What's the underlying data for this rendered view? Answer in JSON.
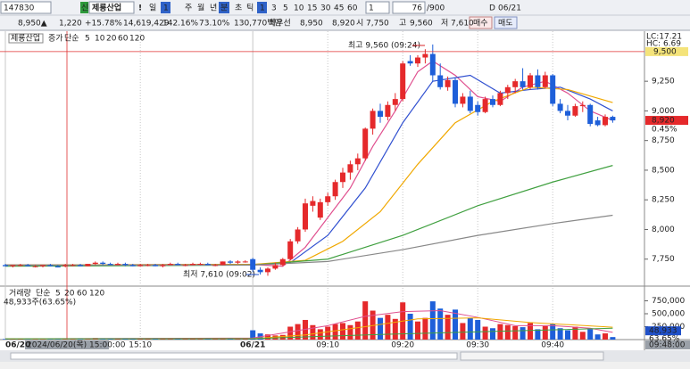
{
  "toolbar": {
    "code": "147830",
    "badge": "신",
    "name": "제룡산업",
    "alert": "!",
    "period": "일",
    "count": "1",
    "periods": [
      "주",
      "월",
      "년",
      "분",
      "초",
      "틱"
    ],
    "intervals": [
      "1",
      "3",
      "5",
      "10",
      "15",
      "30",
      "45",
      "60"
    ],
    "spin": "1",
    "position": "76",
    "total": "/900",
    "date_flag": "D",
    "date": "06/21"
  },
  "quote": {
    "price": "8,950▲",
    "change": "1,220",
    "rate": "+15.78%",
    "volume": "14,619,429",
    "volume_ratio": "142.16%",
    "turnover": "73.10%",
    "amount": "130,770백만",
    "best": "최우선",
    "ask": "8,950",
    "bid": "8,920",
    "open_label": "시",
    "open": "7,750",
    "high_label": "고",
    "high": "9,560",
    "low_label": "저",
    "low": "7,610",
    "buy": "매수",
    "sell": "매도"
  },
  "chart_data": {
    "type": "candlestick",
    "legend": {
      "name": "제룡산업",
      "kind": "증가",
      "method": "단순",
      "periods": [
        "5",
        "10",
        "20",
        "60",
        "120"
      ]
    },
    "ylim": [
      7530,
      9672
    ],
    "yticks": [
      {
        "value": 7750,
        "label": "7,750"
      },
      {
        "value": 8000,
        "label": "8,000"
      },
      {
        "value": 8250,
        "label": "8,250"
      },
      {
        "value": 8500,
        "label": "8,500"
      },
      {
        "value": 8750,
        "label": "8,750"
      },
      {
        "value": 9000,
        "label": "9,000"
      },
      {
        "value": 9250,
        "label": "9,250"
      }
    ],
    "xticks": [
      {
        "value": 0,
        "label": "06/20"
      },
      {
        "value": 18,
        "label": "15:10"
      },
      {
        "value": 33,
        "label": "06/21"
      },
      {
        "value": 43,
        "label": "09:10"
      },
      {
        "value": 53,
        "label": "09:20"
      },
      {
        "value": 63,
        "label": "09:30"
      },
      {
        "value": 73,
        "label": "09:40"
      }
    ],
    "up_color": "#e5292b",
    "down_color": "#1e5fd9",
    "ohlc": [
      [
        7700,
        7710,
        7690,
        7690
      ],
      [
        7690,
        7700,
        7680,
        7700
      ],
      [
        7700,
        7710,
        7690,
        7700
      ],
      [
        7700,
        7710,
        7690,
        7690
      ],
      [
        7690,
        7700,
        7680,
        7690
      ],
      [
        7690,
        7700,
        7680,
        7700
      ],
      [
        7700,
        7710,
        7690,
        7690
      ],
      [
        7690,
        7700,
        7680,
        7680
      ],
      [
        7690,
        7710,
        7680,
        7700
      ],
      [
        7700,
        7710,
        7690,
        7700
      ],
      [
        7700,
        7710,
        7690,
        7690
      ],
      [
        7690,
        7710,
        7690,
        7710
      ],
      [
        7710,
        7730,
        7700,
        7720
      ],
      [
        7720,
        7730,
        7700,
        7710
      ],
      [
        7710,
        7720,
        7700,
        7700
      ],
      [
        7700,
        7720,
        7700,
        7710
      ],
      [
        7710,
        7720,
        7690,
        7700
      ],
      [
        7700,
        7710,
        7690,
        7690
      ],
      [
        7690,
        7710,
        7690,
        7700
      ],
      [
        7700,
        7710,
        7690,
        7700
      ],
      [
        7700,
        7710,
        7690,
        7690
      ],
      [
        7690,
        7710,
        7680,
        7700
      ],
      [
        7700,
        7720,
        7700,
        7710
      ],
      [
        7710,
        7720,
        7700,
        7700
      ],
      [
        7700,
        7710,
        7690,
        7700
      ],
      [
        7700,
        7720,
        7700,
        7710
      ],
      [
        7710,
        7720,
        7700,
        7710
      ],
      [
        7710,
        7720,
        7700,
        7700
      ],
      [
        7700,
        7710,
        7690,
        7700
      ],
      [
        7700,
        7730,
        7700,
        7730
      ],
      [
        7730,
        7740,
        7710,
        7720
      ],
      [
        7720,
        7740,
        7710,
        7730
      ],
      [
        7730,
        7740,
        7720,
        7730
      ],
      [
        7750,
        7760,
        7640,
        7660
      ],
      [
        7660,
        7680,
        7620,
        7640
      ],
      [
        7640,
        7680,
        7610,
        7670
      ],
      [
        7670,
        7720,
        7660,
        7700
      ],
      [
        7700,
        7760,
        7690,
        7750
      ],
      [
        7750,
        7920,
        7740,
        7900
      ],
      [
        7900,
        8020,
        7880,
        8000
      ],
      [
        8000,
        8260,
        7980,
        8220
      ],
      [
        8200,
        8280,
        8150,
        8240
      ],
      [
        8100,
        8260,
        8080,
        8230
      ],
      [
        8230,
        8310,
        8200,
        8280
      ],
      [
        8280,
        8420,
        8250,
        8400
      ],
      [
        8400,
        8520,
        8350,
        8480
      ],
      [
        8480,
        8580,
        8420,
        8550
      ],
      [
        8550,
        8640,
        8500,
        8600
      ],
      [
        8600,
        8860,
        8580,
        8850
      ],
      [
        8850,
        9020,
        8800,
        9000
      ],
      [
        9000,
        9060,
        8900,
        8950
      ],
      [
        8950,
        9080,
        8920,
        9050
      ],
      [
        9050,
        9150,
        9000,
        9100
      ],
      [
        9100,
        9420,
        9080,
        9400
      ],
      [
        9420,
        9470,
        9380,
        9400
      ],
      [
        9400,
        9470,
        9370,
        9450
      ],
      [
        9450,
        9520,
        9400,
        9480
      ],
      [
        9480,
        9560,
        9250,
        9300
      ],
      [
        9300,
        9400,
        9180,
        9200
      ],
      [
        9200,
        9290,
        9170,
        9260
      ],
      [
        9260,
        9280,
        9030,
        9060
      ],
      [
        9060,
        9150,
        9030,
        9120
      ],
      [
        9120,
        9170,
        8980,
        9000
      ],
      [
        9050,
        9080,
        8960,
        8990
      ],
      [
        8990,
        9120,
        8980,
        9100
      ],
      [
        9100,
        9130,
        9030,
        9050
      ],
      [
        9050,
        9170,
        9040,
        9150
      ],
      [
        9150,
        9220,
        9100,
        9200
      ],
      [
        9200,
        9270,
        9150,
        9250
      ],
      [
        9250,
        9360,
        9180,
        9200
      ],
      [
        9200,
        9320,
        9180,
        9300
      ],
      [
        9300,
        9350,
        9180,
        9200
      ],
      [
        9200,
        9330,
        9190,
        9300
      ],
      [
        9300,
        9310,
        9040,
        9060
      ],
      [
        9060,
        9100,
        8980,
        9000
      ],
      [
        9000,
        9050,
        8920,
        8960
      ],
      [
        8960,
        9060,
        8950,
        9040
      ],
      [
        9040,
        9080,
        8990,
        9050
      ],
      [
        9050,
        9060,
        8870,
        8890
      ],
      [
        8920,
        8950,
        8870,
        8880
      ],
      [
        8880,
        8970,
        8870,
        8950
      ],
      [
        8950,
        8960,
        8900,
        8920
      ]
    ],
    "ma": [
      {
        "name": "5",
        "color": "#e0508f",
        "x": [
          0,
          33,
          37,
          40,
          43,
          46,
          49,
          52,
          55,
          57,
          60,
          63,
          66,
          69,
          72,
          75,
          78,
          81
        ],
        "values": [
          7700,
          7705,
          7690,
          7850,
          8100,
          8350,
          8700,
          9000,
          9330,
          9420,
          9300,
          9120,
          9080,
          9200,
          9250,
          9150,
          9000,
          8920
        ]
      },
      {
        "name": "10",
        "color": "#3050d0",
        "x": [
          0,
          33,
          38,
          43,
          48,
          53,
          57,
          62,
          66,
          70,
          74,
          78,
          81
        ],
        "values": [
          7700,
          7705,
          7720,
          7950,
          8350,
          8900,
          9250,
          9300,
          9150,
          9180,
          9200,
          9100,
          9000
        ]
      },
      {
        "name": "20",
        "color": "#f0a800",
        "x": [
          0,
          33,
          40,
          45,
          50,
          55,
          60,
          65,
          70,
          75,
          81
        ],
        "values": [
          7700,
          7705,
          7740,
          7900,
          8150,
          8550,
          8900,
          9080,
          9200,
          9180,
          9070
        ]
      },
      {
        "name": "60",
        "color": "#40a040",
        "x": [
          0,
          33,
          43,
          53,
          63,
          73,
          81
        ],
        "values": [
          7690,
          7700,
          7750,
          7950,
          8200,
          8400,
          8540
        ]
      },
      {
        "name": "120",
        "color": "#888888",
        "x": [
          0,
          33,
          43,
          53,
          63,
          73,
          81
        ],
        "values": [
          7700,
          7700,
          7730,
          7830,
          7950,
          8050,
          8120
        ]
      }
    ],
    "high_note": "최고 9,560 (09:24)",
    "low_note": "최저 7,610 (09:02)",
    "lc": "LC:17.21",
    "hc": "HC: 6.69",
    "crosshair": {
      "price": {
        "value": 9500,
        "label": "9,500"
      },
      "time": "2024/06/20(목) 15:00:00"
    },
    "current": {
      "value": 8920,
      "label": "8,920"
    },
    "current_pct": "0.45%",
    "last_time": "09:48:00",
    "volume": {
      "legend": {
        "name": "거래량",
        "method": "단순",
        "periods": [
          "5",
          "20",
          "60",
          "120"
        ]
      },
      "summary": "48,933주(63.65%)",
      "ylim": [
        0,
        1000000
      ],
      "yticks": [
        {
          "value": 250000,
          "label": "250,000"
        },
        {
          "value": 500000,
          "label": "500,000"
        },
        {
          "value": 750000,
          "label": "750,000"
        }
      ],
      "current": {
        "value": 48933,
        "label": "48,933"
      },
      "current_pct": "63.65%",
      "values": [
        12000,
        8000,
        10000,
        15000,
        9000,
        11000,
        8000,
        14000,
        20000,
        12000,
        9000,
        18000,
        30000,
        22000,
        10000,
        12000,
        9000,
        8000,
        11000,
        9000,
        10000,
        13000,
        16000,
        9000,
        8000,
        12000,
        10000,
        9000,
        11000,
        25000,
        18000,
        20000,
        15000,
        180000,
        120000,
        100000,
        80000,
        90000,
        250000,
        300000,
        380000,
        280000,
        200000,
        250000,
        300000,
        320000,
        280000,
        350000,
        740000,
        560000,
        420000,
        480000,
        400000,
        720000,
        500000,
        350000,
        420000,
        740000,
        600000,
        480000,
        580000,
        320000,
        420000,
        380000,
        250000,
        220000,
        300000,
        280000,
        260000,
        240000,
        320000,
        200000,
        260000,
        300000,
        220000,
        180000,
        250000,
        150000,
        200000,
        100000,
        120000,
        48933
      ],
      "ma": [
        {
          "name": "5",
          "color": "#e0508f",
          "x": [
            0,
            33,
            38,
            43,
            48,
            53,
            58,
            63,
            68,
            73,
            78,
            81
          ],
          "values": [
            15000,
            30000,
            150000,
            270000,
            450000,
            540000,
            560000,
            430000,
            270000,
            270000,
            220000,
            140000
          ]
        },
        {
          "name": "20",
          "color": "#f0a800",
          "x": [
            0,
            33,
            40,
            48,
            55,
            63,
            70,
            81
          ],
          "values": [
            15000,
            20000,
            90000,
            250000,
            400000,
            420000,
            330000,
            240000
          ]
        },
        {
          "name": "60",
          "color": "#40a040",
          "x": [
            0,
            33,
            50,
            81
          ],
          "values": [
            15000,
            18000,
            100000,
            220000
          ]
        }
      ]
    }
  }
}
